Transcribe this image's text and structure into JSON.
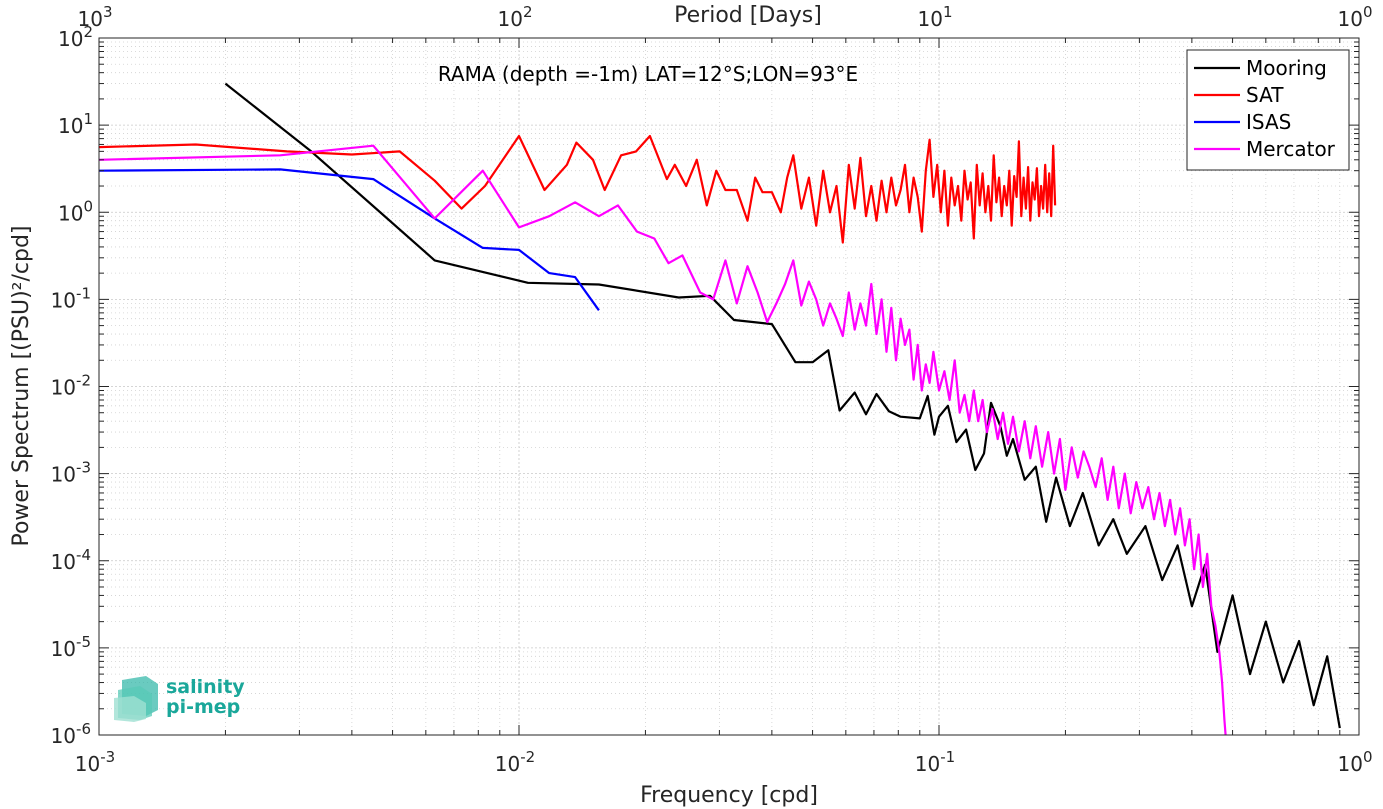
{
  "chart_data": {
    "type": "line",
    "annotation": "RAMA (depth =-1m) LAT=12°S;LON=93°E",
    "xlabel": "Frequency [cpd]",
    "ylabel": "Power Spectrum [(PSU)²/cpd]",
    "top_axis_label": "Period [Days]",
    "x_scale": "log",
    "y_scale": "log",
    "xlim": [
      0.001,
      1
    ],
    "ylim": [
      1e-06,
      100
    ],
    "grid": true,
    "legend_position": "top-right",
    "x_ticks": [
      {
        "value": 0.001,
        "base": "10",
        "exp": "-3"
      },
      {
        "value": 0.01,
        "base": "10",
        "exp": "-2"
      },
      {
        "value": 0.1,
        "base": "10",
        "exp": "-1"
      },
      {
        "value": 1,
        "base": "10",
        "exp": "0"
      }
    ],
    "top_ticks": [
      {
        "value": 0.001,
        "base": "10",
        "exp": "3"
      },
      {
        "value": 0.01,
        "base": "10",
        "exp": "2"
      },
      {
        "value": 0.1,
        "base": "10",
        "exp": "1"
      },
      {
        "value": 1,
        "base": "10",
        "exp": "0"
      }
    ],
    "y_ticks": [
      {
        "value": 100,
        "base": "10",
        "exp": "2"
      },
      {
        "value": 10,
        "base": "10",
        "exp": "1"
      },
      {
        "value": 1,
        "base": "10",
        "exp": "0"
      },
      {
        "value": 0.1,
        "base": "10",
        "exp": "-1"
      },
      {
        "value": 0.01,
        "base": "10",
        "exp": "-2"
      },
      {
        "value": 0.001,
        "base": "10",
        "exp": "-3"
      },
      {
        "value": 0.0001,
        "base": "10",
        "exp": "-4"
      },
      {
        "value": 1e-05,
        "base": "10",
        "exp": "-5"
      },
      {
        "value": 1e-06,
        "base": "10",
        "exp": "-6"
      }
    ],
    "series": [
      {
        "name": "Mooring",
        "color": "#000000",
        "points": [
          [
            0.002,
            30
          ],
          [
            0.0032,
            5
          ],
          [
            0.0063,
            0.28
          ],
          [
            0.0105,
            0.155
          ],
          [
            0.0155,
            0.148
          ],
          [
            0.024,
            0.105
          ],
          [
            0.0285,
            0.11
          ],
          [
            0.0325,
            0.058
          ],
          [
            0.04,
            0.052
          ],
          [
            0.0455,
            0.019
          ],
          [
            0.05,
            0.019
          ],
          [
            0.0545,
            0.026
          ],
          [
            0.058,
            0.0053
          ],
          [
            0.063,
            0.0085
          ],
          [
            0.067,
            0.0048
          ],
          [
            0.071,
            0.0082
          ],
          [
            0.076,
            0.0052
          ],
          [
            0.081,
            0.0045
          ],
          [
            0.09,
            0.0043
          ],
          [
            0.094,
            0.0078
          ],
          [
            0.0975,
            0.0028
          ],
          [
            0.1,
            0.0045
          ],
          [
            0.105,
            0.006
          ],
          [
            0.11,
            0.0023
          ],
          [
            0.116,
            0.0032
          ],
          [
            0.122,
            0.0011
          ],
          [
            0.128,
            0.0017
          ],
          [
            0.133,
            0.0065
          ],
          [
            0.14,
            0.0035
          ],
          [
            0.145,
            0.0016
          ],
          [
            0.15,
            0.0025
          ],
          [
            0.16,
            0.00085
          ],
          [
            0.17,
            0.0012
          ],
          [
            0.18,
            0.00028
          ],
          [
            0.19,
            0.0009
          ],
          [
            0.205,
            0.00025
          ],
          [
            0.22,
            0.0006
          ],
          [
            0.24,
            0.00015
          ],
          [
            0.26,
            0.0003
          ],
          [
            0.28,
            0.00012
          ],
          [
            0.31,
            0.00025
          ],
          [
            0.34,
            6e-05
          ],
          [
            0.37,
            0.00015
          ],
          [
            0.4,
            3e-05
          ],
          [
            0.43,
            9e-05
          ],
          [
            0.46,
            9e-06
          ],
          [
            0.5,
            4e-05
          ],
          [
            0.55,
            5e-06
          ],
          [
            0.6,
            2e-05
          ],
          [
            0.66,
            4e-06
          ],
          [
            0.72,
            1.2e-05
          ],
          [
            0.78,
            2.2e-06
          ],
          [
            0.84,
            8e-06
          ],
          [
            0.9,
            1.2e-06
          ]
        ]
      },
      {
        "name": "SAT",
        "color": "#ff0000",
        "points": [
          [
            0.001,
            5.6
          ],
          [
            0.0017,
            6
          ],
          [
            0.0028,
            5.0
          ],
          [
            0.004,
            4.6
          ],
          [
            0.0052,
            5.0
          ],
          [
            0.0063,
            2.3
          ],
          [
            0.0073,
            1.1
          ],
          [
            0.0083,
            2.0
          ],
          [
            0.01,
            7.5
          ],
          [
            0.0115,
            1.8
          ],
          [
            0.013,
            3.5
          ],
          [
            0.0137,
            6.3
          ],
          [
            0.015,
            4.0
          ],
          [
            0.016,
            1.8
          ],
          [
            0.0175,
            4.5
          ],
          [
            0.019,
            5.0
          ],
          [
            0.0205,
            7.5
          ],
          [
            0.0225,
            2.4
          ],
          [
            0.0235,
            3.5
          ],
          [
            0.025,
            2.0
          ],
          [
            0.0265,
            4.0
          ],
          [
            0.028,
            1.2
          ],
          [
            0.0295,
            3.0
          ],
          [
            0.031,
            1.8
          ],
          [
            0.033,
            1.8
          ],
          [
            0.035,
            0.8
          ],
          [
            0.0365,
            2.5
          ],
          [
            0.038,
            1.7
          ],
          [
            0.04,
            1.7
          ],
          [
            0.042,
            1.0
          ],
          [
            0.0435,
            2.5
          ],
          [
            0.045,
            4.5
          ],
          [
            0.047,
            1.1
          ],
          [
            0.049,
            2.5
          ],
          [
            0.051,
            0.7
          ],
          [
            0.053,
            3.0
          ],
          [
            0.055,
            1.0
          ],
          [
            0.057,
            2.0
          ],
          [
            0.059,
            0.45
          ],
          [
            0.061,
            3.5
          ],
          [
            0.063,
            1.1
          ],
          [
            0.065,
            4.2
          ],
          [
            0.067,
            0.9
          ],
          [
            0.069,
            2.0
          ],
          [
            0.071,
            0.8
          ],
          [
            0.073,
            2.3
          ],
          [
            0.075,
            1.0
          ],
          [
            0.077,
            2.5
          ],
          [
            0.079,
            1.2
          ],
          [
            0.081,
            1.8
          ],
          [
            0.083,
            3.5
          ],
          [
            0.085,
            1.0
          ],
          [
            0.087,
            2.5
          ],
          [
            0.089,
            1.5
          ],
          [
            0.091,
            0.6
          ],
          [
            0.093,
            3.0
          ],
          [
            0.095,
            6.8
          ],
          [
            0.097,
            1.5
          ],
          [
            0.099,
            3.5
          ],
          [
            0.101,
            1.0
          ],
          [
            0.103,
            3.0
          ],
          [
            0.105,
            0.7
          ],
          [
            0.107,
            2.5
          ],
          [
            0.109,
            1.2
          ],
          [
            0.111,
            2.0
          ],
          [
            0.113,
            0.8
          ],
          [
            0.115,
            3.0
          ],
          [
            0.117,
            1.4
          ],
          [
            0.119,
            2.2
          ],
          [
            0.121,
            0.5
          ],
          [
            0.123,
            3.5
          ],
          [
            0.125,
            1.2
          ],
          [
            0.127,
            2.8
          ],
          [
            0.129,
            1.0
          ],
          [
            0.131,
            2.0
          ],
          [
            0.133,
            0.8
          ],
          [
            0.135,
            4.5
          ],
          [
            0.137,
            1.3
          ],
          [
            0.139,
            2.5
          ],
          [
            0.141,
            0.9
          ],
          [
            0.143,
            2.0
          ],
          [
            0.145,
            1.2
          ],
          [
            0.147,
            3.0
          ],
          [
            0.149,
            0.7
          ],
          [
            0.151,
            2.6
          ],
          [
            0.153,
            1.5
          ],
          [
            0.155,
            6.5
          ],
          [
            0.157,
            0.9
          ],
          [
            0.159,
            2.5
          ],
          [
            0.161,
            1.1
          ],
          [
            0.163,
            3.3
          ],
          [
            0.165,
            0.8
          ],
          [
            0.167,
            2.2
          ],
          [
            0.169,
            1.4
          ],
          [
            0.171,
            3.2
          ],
          [
            0.173,
            0.9
          ],
          [
            0.175,
            2.0
          ],
          [
            0.177,
            1.1
          ],
          [
            0.179,
            3.5
          ],
          [
            0.181,
            1.0
          ],
          [
            0.183,
            2.8
          ],
          [
            0.185,
            0.9
          ],
          [
            0.187,
            5.8
          ],
          [
            0.189,
            1.2
          ]
        ]
      },
      {
        "name": "ISAS",
        "color": "#0000ff",
        "points": [
          [
            0.001,
            3.0
          ],
          [
            0.0027,
            3.1
          ],
          [
            0.0045,
            2.4
          ],
          [
            0.0063,
            0.85
          ],
          [
            0.0082,
            0.39
          ],
          [
            0.01,
            0.37
          ],
          [
            0.0118,
            0.2
          ],
          [
            0.0136,
            0.18
          ],
          [
            0.0155,
            0.075
          ]
        ]
      },
      {
        "name": "Mercator",
        "color": "#ff00ff",
        "points": [
          [
            0.001,
            4.0
          ],
          [
            0.0027,
            4.5
          ],
          [
            0.0045,
            5.8
          ],
          [
            0.0063,
            0.85
          ],
          [
            0.0082,
            3.0
          ],
          [
            0.01,
            0.67
          ],
          [
            0.0118,
            0.9
          ],
          [
            0.0136,
            1.3
          ],
          [
            0.0155,
            0.9
          ],
          [
            0.0172,
            1.2
          ],
          [
            0.0191,
            0.6
          ],
          [
            0.021,
            0.5
          ],
          [
            0.0227,
            0.26
          ],
          [
            0.0245,
            0.32
          ],
          [
            0.027,
            0.12
          ],
          [
            0.029,
            0.1
          ],
          [
            0.031,
            0.28
          ],
          [
            0.033,
            0.09
          ],
          [
            0.035,
            0.24
          ],
          [
            0.037,
            0.12
          ],
          [
            0.039,
            0.055
          ],
          [
            0.041,
            0.09
          ],
          [
            0.043,
            0.15
          ],
          [
            0.045,
            0.28
          ],
          [
            0.047,
            0.085
          ],
          [
            0.049,
            0.16
          ],
          [
            0.051,
            0.1
          ],
          [
            0.053,
            0.05
          ],
          [
            0.055,
            0.09
          ],
          [
            0.057,
            0.06
          ],
          [
            0.059,
            0.038
          ],
          [
            0.061,
            0.12
          ],
          [
            0.063,
            0.045
          ],
          [
            0.065,
            0.09
          ],
          [
            0.067,
            0.05
          ],
          [
            0.069,
            0.15
          ],
          [
            0.071,
            0.04
          ],
          [
            0.073,
            0.1
          ],
          [
            0.075,
            0.025
          ],
          [
            0.077,
            0.08
          ],
          [
            0.079,
            0.02
          ],
          [
            0.081,
            0.06
          ],
          [
            0.083,
            0.03
          ],
          [
            0.085,
            0.045
          ],
          [
            0.087,
            0.012
          ],
          [
            0.089,
            0.03
          ],
          [
            0.091,
            0.009
          ],
          [
            0.093,
            0.018
          ],
          [
            0.095,
            0.011
          ],
          [
            0.097,
            0.025
          ],
          [
            0.1,
            0.009
          ],
          [
            0.103,
            0.015
          ],
          [
            0.106,
            0.007
          ],
          [
            0.109,
            0.02
          ],
          [
            0.112,
            0.005
          ],
          [
            0.115,
            0.008
          ],
          [
            0.118,
            0.004
          ],
          [
            0.121,
            0.009
          ],
          [
            0.124,
            0.004
          ],
          [
            0.127,
            0.007
          ],
          [
            0.13,
            0.003
          ],
          [
            0.134,
            0.0055
          ],
          [
            0.138,
            0.0025
          ],
          [
            0.142,
            0.005
          ],
          [
            0.146,
            0.0022
          ],
          [
            0.15,
            0.0045
          ],
          [
            0.155,
            0.0018
          ],
          [
            0.16,
            0.004
          ],
          [
            0.165,
            0.0015
          ],
          [
            0.17,
            0.0035
          ],
          [
            0.176,
            0.0012
          ],
          [
            0.182,
            0.003
          ],
          [
            0.188,
            0.001
          ],
          [
            0.194,
            0.0025
          ],
          [
            0.2,
            0.00065
          ],
          [
            0.207,
            0.002
          ],
          [
            0.214,
            0.0009
          ],
          [
            0.221,
            0.0018
          ],
          [
            0.228,
            0.0012
          ],
          [
            0.236,
            0.0007
          ],
          [
            0.244,
            0.0015
          ],
          [
            0.252,
            0.0005
          ],
          [
            0.26,
            0.0012
          ],
          [
            0.268,
            0.0004
          ],
          [
            0.277,
            0.001
          ],
          [
            0.286,
            0.00035
          ],
          [
            0.295,
            0.0008
          ],
          [
            0.305,
            0.0004
          ],
          [
            0.315,
            0.0007
          ],
          [
            0.325,
            0.0003
          ],
          [
            0.335,
            0.0006
          ],
          [
            0.345,
            0.00025
          ],
          [
            0.355,
            0.0005
          ],
          [
            0.365,
            0.0002
          ],
          [
            0.375,
            0.0004
          ],
          [
            0.385,
            0.00015
          ],
          [
            0.395,
            0.0003
          ],
          [
            0.405,
            8e-05
          ],
          [
            0.415,
            0.0002
          ],
          [
            0.425,
            5e-05
          ],
          [
            0.435,
            0.00012
          ],
          [
            0.445,
            3e-05
          ],
          [
            0.455,
            1.8e-05
          ],
          [
            0.465,
            9e-06
          ],
          [
            0.472,
            4e-06
          ],
          [
            0.478,
            1.5e-06
          ],
          [
            0.482,
            9e-07
          ]
        ]
      }
    ]
  }
}
